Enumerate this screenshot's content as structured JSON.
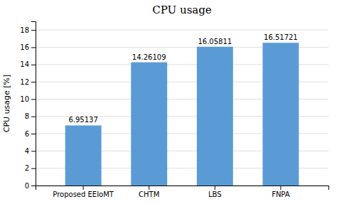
{
  "chart_data": {
    "type": "bar",
    "title": "CPU usage",
    "categories": [
      "Proposed EEIoMT",
      "CHTM",
      "LBS",
      "FNPA"
    ],
    "values": [
      6.95137,
      14.26109,
      16.05811,
      16.51721
    ],
    "color": "#5B9BD5",
    "ylabel": "CPU usage [%]",
    "ylim": [
      0,
      19
    ],
    "yticks": [
      0,
      2,
      4,
      6,
      8,
      10,
      12,
      14,
      16,
      18
    ],
    "grid": true,
    "data_labels": true
  }
}
